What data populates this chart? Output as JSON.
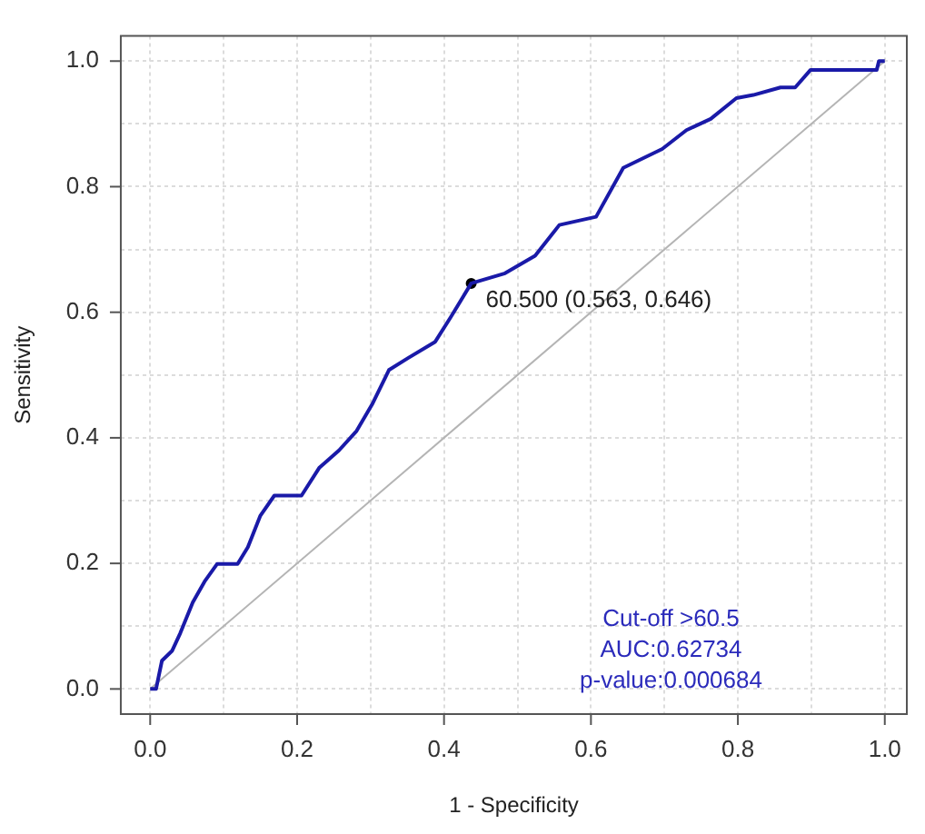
{
  "chart_data": {
    "type": "line",
    "xlabel": "1 - Specificity",
    "ylabel": "Sensitivity",
    "xlim": [
      -0.04,
      1.03
    ],
    "ylim": [
      -0.04,
      1.04
    ],
    "xticks": [
      {
        "value": 0,
        "label": "0.0"
      },
      {
        "value": 0.1,
        "label": null
      },
      {
        "value": 0.2,
        "label": "0.2"
      },
      {
        "value": 0.3,
        "label": null
      },
      {
        "value": 0.4,
        "label": "0.4"
      },
      {
        "value": 0.5,
        "label": null
      },
      {
        "value": 0.6,
        "label": "0.6"
      },
      {
        "value": 0.7,
        "label": null
      },
      {
        "value": 0.8,
        "label": "0.8"
      },
      {
        "value": 0.9,
        "label": null
      },
      {
        "value": 1,
        "label": "1.0"
      }
    ],
    "yticks": [
      {
        "value": 0,
        "label": "0.0"
      },
      {
        "value": 0.1,
        "label": null
      },
      {
        "value": 0.2,
        "label": "0.2"
      },
      {
        "value": 0.3,
        "label": null
      },
      {
        "value": 0.4,
        "label": "0.4"
      },
      {
        "value": 0.5,
        "label": null
      },
      {
        "value": 0.6,
        "label": "0.6"
      },
      {
        "value": 0.7,
        "label": null
      },
      {
        "value": 0.8,
        "label": "0.8"
      },
      {
        "value": 0.9,
        "label": null
      },
      {
        "value": 1,
        "label": "1.0"
      }
    ],
    "grid": true,
    "series": [
      {
        "color": "#1a1aa8",
        "x": [
          0,
          0.008,
          0.016,
          0.03,
          0.041,
          0.058,
          0.074,
          0.091,
          0.119,
          0.133,
          0.15,
          0.169,
          0.206,
          0.23,
          0.257,
          0.281,
          0.302,
          0.325,
          0.351,
          0.388,
          0.409,
          0.437,
          0.483,
          0.524,
          0.557,
          0.607,
          0.644,
          0.697,
          0.73,
          0.763,
          0.798,
          0.821,
          0.858,
          0.878,
          0.899,
          0.989,
          0.992,
          1
        ],
        "values": [
          0,
          0,
          0.045,
          0.061,
          0.089,
          0.138,
          0.171,
          0.199,
          0.199,
          0.226,
          0.276,
          0.308,
          0.308,
          0.352,
          0.38,
          0.411,
          0.453,
          0.508,
          0.527,
          0.553,
          0.592,
          0.646,
          0.662,
          0.69,
          0.739,
          0.752,
          0.83,
          0.86,
          0.89,
          0.908,
          0.941,
          0.946,
          0.958,
          0.958,
          0.986,
          0.986,
          1,
          1
        ]
      },
      {
        "type": "line",
        "color": "#b4b4b4",
        "x": [
          0,
          1
        ],
        "values": [
          0,
          1
        ]
      },
      {
        "type": "scatter",
        "color": "#000000",
        "x": [
          0.437
        ],
        "values": [
          0.646
        ]
      }
    ],
    "annotations": [
      {
        "text": "60.500 (0.563, 0.646)",
        "x": 0.437,
        "y": 0.646
      },
      "Cut-off >60.5",
      "AUC:0.62734",
      "p-value:0.000684"
    ]
  }
}
